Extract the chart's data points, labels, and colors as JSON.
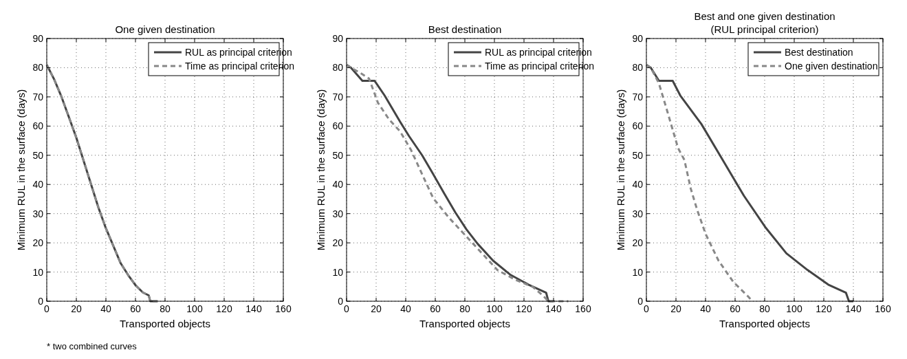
{
  "chart_data": [
    {
      "type": "line",
      "title": "One given destination",
      "xlabel": "Transported objects",
      "ylabel": "Minimum RUL in the surface (days)",
      "xlim": [
        0,
        160
      ],
      "ylim": [
        0,
        90
      ],
      "xticks": [
        0,
        20,
        40,
        60,
        80,
        100,
        120,
        140,
        160
      ],
      "yticks": [
        0,
        10,
        20,
        30,
        40,
        50,
        60,
        70,
        80,
        90
      ],
      "grid": true,
      "legend": "top right",
      "annotations": [
        "* two combined curves"
      ],
      "series": [
        {
          "name": "RUL as principal criterion",
          "color": "#444444",
          "line_style": "solid",
          "x": [
            0,
            5,
            10,
            15,
            20,
            25,
            30,
            35,
            40,
            45,
            50,
            55,
            60,
            65,
            69,
            70,
            75
          ],
          "values": [
            81,
            76,
            70,
            63,
            56,
            48,
            40,
            32,
            25,
            19,
            13,
            9,
            5.5,
            3,
            2,
            0,
            0
          ]
        },
        {
          "name": "Time as principal criterion",
          "color": "#888888",
          "line_style": "dashed",
          "x": [
            0,
            5,
            10,
            15,
            20,
            25,
            30,
            35,
            40,
            45,
            50,
            55,
            60,
            65,
            69,
            70,
            75
          ],
          "values": [
            81,
            76,
            70,
            63,
            56,
            48,
            40,
            32,
            25,
            19,
            13,
            9,
            5.5,
            3,
            2,
            0,
            0
          ]
        }
      ]
    },
    {
      "type": "line",
      "title": "Best destination",
      "xlabel": "Transported objects",
      "ylabel": "Minimum RUL in the surface (days)",
      "xlim": [
        0,
        160
      ],
      "ylim": [
        0,
        90
      ],
      "xticks": [
        0,
        20,
        40,
        60,
        80,
        100,
        120,
        140,
        160
      ],
      "yticks": [
        0,
        10,
        20,
        30,
        40,
        50,
        60,
        70,
        80,
        90
      ],
      "grid": true,
      "legend": "top right",
      "series": [
        {
          "name": "RUL as principal criterion",
          "color": "#444444",
          "line_style": "solid",
          "x": [
            0,
            3,
            10.7,
            19,
            25.7,
            36.2,
            42.2,
            51.1,
            58.6,
            66.1,
            73.6,
            81.1,
            88.6,
            99.1,
            111,
            123,
            135,
            136.5,
            140
          ],
          "values": [
            81,
            80,
            75.5,
            75.5,
            70.5,
            61.5,
            56.6,
            50,
            43.5,
            36.9,
            30.4,
            24.6,
            19.7,
            13.9,
            9,
            5.7,
            2.9,
            0,
            0
          ]
        },
        {
          "name": "Time as principal criterion",
          "color": "#888888",
          "line_style": "dashed",
          "x": [
            0,
            3,
            10,
            15.2,
            21.2,
            28.7,
            36.2,
            43.7,
            51.1,
            58.6,
            69.1,
            76.6,
            85.6,
            93.1,
            102,
            114,
            126,
            133.5,
            136.5,
            150
          ],
          "values": [
            81,
            80,
            78,
            76.3,
            68,
            62.3,
            58.2,
            51.7,
            43.5,
            35.3,
            28.7,
            24.6,
            19.7,
            15.6,
            10.7,
            7.4,
            4.9,
            1.6,
            0,
            0
          ]
        }
      ]
    },
    {
      "type": "line",
      "title": "Best and one given destination",
      "subtitle": "(RUL principal criterion)",
      "xlabel": "Transported objects",
      "ylabel": "Minimum RUL in the surface (days)",
      "xlim": [
        0,
        160
      ],
      "ylim": [
        0,
        90
      ],
      "xticks": [
        0,
        20,
        40,
        60,
        80,
        100,
        120,
        140,
        160
      ],
      "yticks": [
        0,
        10,
        20,
        30,
        40,
        50,
        60,
        70,
        80,
        90
      ],
      "grid": true,
      "legend": "top right",
      "series": [
        {
          "name": "Best destination",
          "color": "#444444",
          "line_style": "solid",
          "x": [
            0,
            3,
            8.5,
            17.8,
            22.9,
            37.2,
            51.6,
            66,
            80.4,
            94.7,
            109,
            123,
            135,
            137,
            140
          ],
          "values": [
            81,
            80,
            75.5,
            75.5,
            70.5,
            60.7,
            48.4,
            36.1,
            25.4,
            16.4,
            10.7,
            5.7,
            2.9,
            0,
            0
          ]
        },
        {
          "name": "One given destination",
          "color": "#888888",
          "line_style": "dashed",
          "x": [
            0,
            3,
            8.5,
            14.3,
            21.4,
            25.7,
            30,
            34.4,
            40.1,
            48.8,
            58.8,
            68.9,
            71.7
          ],
          "values": [
            81,
            80,
            74.6,
            64.8,
            52.5,
            48.4,
            38.6,
            31.2,
            23,
            13.9,
            6.6,
            1.6,
            0
          ]
        }
      ]
    }
  ]
}
